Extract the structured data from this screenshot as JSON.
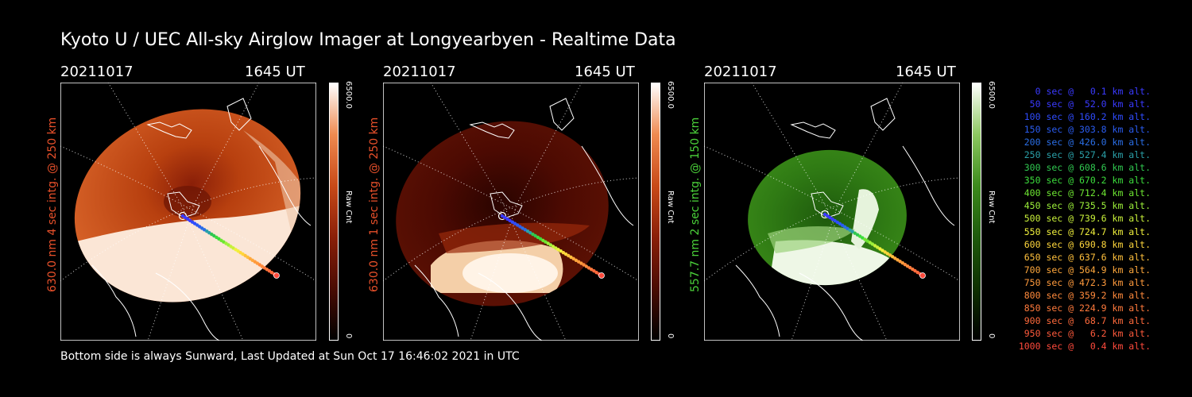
{
  "title": "Kyoto U / UEC All-sky Airglow Imager at Longyearbyen - Realtime Data",
  "footer": "Bottom side is always Sunward, Last Updated at Sun Oct 17 16:46:02 2021 in UTC",
  "panels": [
    {
      "date": "20211017",
      "time": "1645 UT",
      "ylabel": "630.0 nm 4 sec intg. @ 250 km",
      "label_color": "#e8502a",
      "cbar_max": "6500.0",
      "cbar_min": "0",
      "cbar_unit": "Raw Cnt"
    },
    {
      "date": "20211017",
      "time": "1645 UT",
      "ylabel": "630.0 nm 1 sec intg. @ 250 km",
      "label_color": "#e8502a",
      "cbar_max": "6500.0",
      "cbar_min": "0",
      "cbar_unit": "Raw Cnt"
    },
    {
      "date": "20211017",
      "time": "1645 UT",
      "ylabel": "557.7 nm 2 sec intg. @ 150 km",
      "label_color": "#4bd23a",
      "cbar_max": "6500.0",
      "cbar_min": "0",
      "cbar_unit": "Raw Cnt"
    }
  ],
  "legend": [
    {
      "text": "0 sec @   0.1 km alt.",
      "color": "#3a3aff"
    },
    {
      "text": "50 sec @  52.0 km alt.",
      "color": "#3a3aff"
    },
    {
      "text": "100 sec @ 160.2 km alt.",
      "color": "#2f4cff"
    },
    {
      "text": "150 sec @ 303.8 km alt.",
      "color": "#2a5cf0"
    },
    {
      "text": "200 sec @ 426.0 km alt.",
      "color": "#2a6ee6"
    },
    {
      "text": "250 sec @ 527.4 km alt.",
      "color": "#2aa0a8"
    },
    {
      "text": "300 sec @ 608.6 km alt.",
      "color": "#30c850"
    },
    {
      "text": "350 sec @ 670.2 km alt.",
      "color": "#3cdc3c"
    },
    {
      "text": "400 sec @ 712.4 km alt.",
      "color": "#6ee632"
    },
    {
      "text": "450 sec @ 735.5 km alt.",
      "color": "#9cf03a"
    },
    {
      "text": "500 sec @ 739.6 km alt.",
      "color": "#c8f03a"
    },
    {
      "text": "550 sec @ 724.7 km alt.",
      "color": "#f0f03c"
    },
    {
      "text": "600 sec @ 690.8 km alt.",
      "color": "#ffd73c"
    },
    {
      "text": "650 sec @ 637.6 km alt.",
      "color": "#ffc03c"
    },
    {
      "text": "700 sec @ 564.9 km alt.",
      "color": "#ffa83c"
    },
    {
      "text": "750 sec @ 472.3 km alt.",
      "color": "#ff9a3c"
    },
    {
      "text": "800 sec @ 359.2 km alt.",
      "color": "#ff8a3c"
    },
    {
      "text": "850 sec @ 224.9 km alt.",
      "color": "#ff7a3c"
    },
    {
      "text": "900 sec @  68.7 km alt.",
      "color": "#ff6a3c"
    },
    {
      "text": "950 sec @   6.2 km alt.",
      "color": "#ff5a3c"
    },
    {
      "text": "1000 sec @   0.4 km alt.",
      "color": "#ff4a3c"
    }
  ],
  "colors": {
    "red_scale": "#e8502a",
    "green_scale": "#4bd23a"
  }
}
